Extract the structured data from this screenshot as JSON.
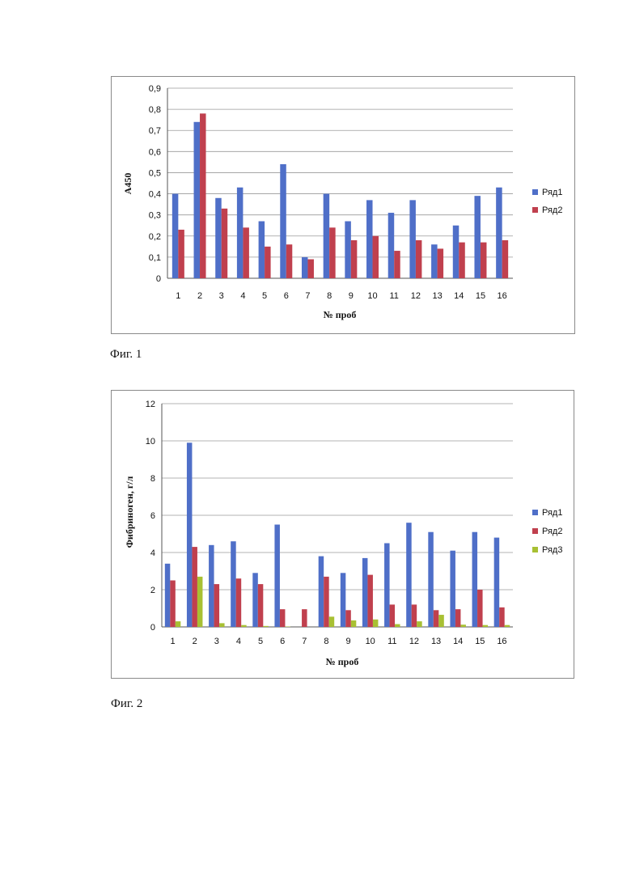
{
  "colors": {
    "series1": "#4f6fc8",
    "series2": "#c0404e",
    "series3": "#a8c033",
    "grid": "#9a9a9a"
  },
  "figures": [
    {
      "caption": "Фиг. 1"
    },
    {
      "caption": "Фиг. 2"
    }
  ],
  "chart_data": [
    {
      "type": "bar",
      "categories": [
        "1",
        "2",
        "3",
        "4",
        "5",
        "6",
        "7",
        "8",
        "9",
        "10",
        "11",
        "12",
        "13",
        "14",
        "15",
        "16"
      ],
      "series": [
        {
          "name": "Ряд1",
          "values": [
            0.4,
            0.74,
            0.38,
            0.43,
            0.27,
            0.54,
            0.1,
            0.4,
            0.27,
            0.37,
            0.31,
            0.37,
            0.16,
            0.25,
            0.39,
            0.43
          ]
        },
        {
          "name": "Ряд2",
          "values": [
            0.23,
            0.78,
            0.33,
            0.24,
            0.15,
            0.16,
            0.09,
            0.24,
            0.18,
            0.2,
            0.13,
            0.18,
            0.14,
            0.17,
            0.17,
            0.18
          ]
        }
      ],
      "yticks": [
        "0",
        "0,1",
        "0,2",
        "0,3",
        "0,4",
        "0,5",
        "0,6",
        "0,7",
        "0,8",
        "0,9"
      ],
      "ylim": [
        0,
        0.9
      ],
      "xlabel": "№ проб",
      "ylabel": "A450",
      "grid": true,
      "legend": "right"
    },
    {
      "type": "bar",
      "categories": [
        "1",
        "2",
        "3",
        "4",
        "5",
        "6",
        "7",
        "8",
        "9",
        "10",
        "11",
        "12",
        "13",
        "14",
        "15",
        "16"
      ],
      "series": [
        {
          "name": "Ряд1",
          "values": [
            3.4,
            9.9,
            4.4,
            4.6,
            2.9,
            5.5,
            0,
            3.8,
            2.9,
            3.7,
            4.5,
            5.6,
            5.1,
            4.1,
            5.1,
            4.8
          ]
        },
        {
          "name": "Ряд2",
          "values": [
            2.5,
            4.3,
            2.3,
            2.6,
            2.3,
            0.95,
            0.95,
            2.7,
            0.9,
            2.8,
            1.2,
            1.2,
            0.9,
            0.95,
            2.0,
            1.05
          ]
        },
        {
          "name": "Ряд3",
          "values": [
            0.3,
            2.7,
            0.2,
            0.1,
            0.05,
            0.02,
            0,
            0.55,
            0.35,
            0.4,
            0.15,
            0.3,
            0.65,
            0.12,
            0.1,
            0.1
          ]
        }
      ],
      "yticks": [
        "0",
        "2",
        "4",
        "6",
        "8",
        "10",
        "12"
      ],
      "ylim": [
        0,
        12
      ],
      "xlabel": "№ проб",
      "ylabel": "Фибриноген, г/л",
      "grid": true,
      "legend": "right"
    }
  ]
}
